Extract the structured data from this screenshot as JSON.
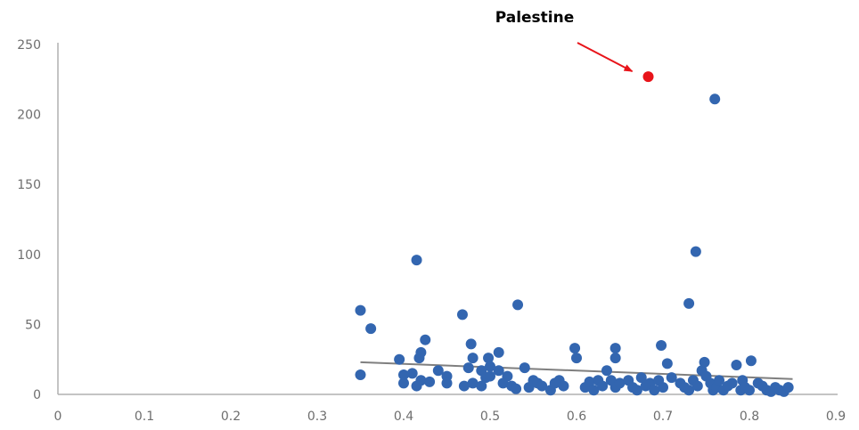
{
  "chart_data": {
    "type": "scatter",
    "title": "",
    "xlabel": "",
    "ylabel": "",
    "xlim": [
      0,
      0.9
    ],
    "ylim": [
      0,
      250
    ],
    "x_ticks": [
      0,
      0.1,
      0.2,
      0.3,
      0.4,
      0.5,
      0.6,
      0.7,
      0.8,
      0.9
    ],
    "x_tick_labels": [
      "0",
      "0.1",
      "0.2",
      "0.3",
      "0.4",
      "0.5",
      "0.6",
      "0.7",
      "0.8",
      "0.9"
    ],
    "y_ticks": [
      0,
      50,
      100,
      150,
      200,
      250
    ],
    "y_tick_labels": [
      "0",
      "50",
      "100",
      "150",
      "200",
      "250"
    ],
    "grid": false,
    "legend": "none",
    "colors": {
      "points": "#3366b0",
      "highlight": "#e8141a",
      "trendline": "#7f7f7f",
      "axis": "#b0b0b0"
    },
    "series": [
      {
        "points": [
          [
            0.35,
            60
          ],
          [
            0.362,
            47
          ],
          [
            0.35,
            14
          ],
          [
            0.395,
            25
          ],
          [
            0.4,
            14
          ],
          [
            0.4,
            8
          ],
          [
            0.41,
            15
          ],
          [
            0.415,
            96
          ],
          [
            0.418,
            26
          ],
          [
            0.42,
            30
          ],
          [
            0.42,
            10
          ],
          [
            0.415,
            6
          ],
          [
            0.425,
            39
          ],
          [
            0.43,
            9
          ],
          [
            0.44,
            17
          ],
          [
            0.45,
            13
          ],
          [
            0.45,
            8
          ],
          [
            0.468,
            57
          ],
          [
            0.47,
            6
          ],
          [
            0.475,
            19
          ],
          [
            0.478,
            36
          ],
          [
            0.48,
            26
          ],
          [
            0.48,
            8
          ],
          [
            0.49,
            6
          ],
          [
            0.49,
            17
          ],
          [
            0.495,
            12
          ],
          [
            0.498,
            26
          ],
          [
            0.5,
            20
          ],
          [
            0.5,
            13
          ],
          [
            0.51,
            30
          ],
          [
            0.51,
            17
          ],
          [
            0.515,
            8
          ],
          [
            0.52,
            13
          ],
          [
            0.525,
            6
          ],
          [
            0.53,
            4
          ],
          [
            0.532,
            64
          ],
          [
            0.54,
            19
          ],
          [
            0.545,
            5
          ],
          [
            0.55,
            10
          ],
          [
            0.555,
            8
          ],
          [
            0.56,
            6
          ],
          [
            0.57,
            3
          ],
          [
            0.575,
            8
          ],
          [
            0.58,
            10
          ],
          [
            0.585,
            6
          ],
          [
            0.598,
            33
          ],
          [
            0.6,
            26
          ],
          [
            0.61,
            5
          ],
          [
            0.615,
            9
          ],
          [
            0.62,
            3
          ],
          [
            0.625,
            10
          ],
          [
            0.63,
            6
          ],
          [
            0.635,
            17
          ],
          [
            0.64,
            10
          ],
          [
            0.645,
            33
          ],
          [
            0.645,
            26
          ],
          [
            0.645,
            5
          ],
          [
            0.65,
            8
          ],
          [
            0.66,
            10
          ],
          [
            0.665,
            5
          ],
          [
            0.67,
            3
          ],
          [
            0.675,
            12
          ],
          [
            0.68,
            6
          ],
          [
            0.685,
            8
          ],
          [
            0.69,
            3
          ],
          [
            0.695,
            10
          ],
          [
            0.698,
            35
          ],
          [
            0.7,
            5
          ],
          [
            0.705,
            22
          ],
          [
            0.71,
            12
          ],
          [
            0.72,
            8
          ],
          [
            0.725,
            5
          ],
          [
            0.73,
            65
          ],
          [
            0.73,
            3
          ],
          [
            0.735,
            10
          ],
          [
            0.738,
            102
          ],
          [
            0.74,
            6
          ],
          [
            0.745,
            17
          ],
          [
            0.748,
            23
          ],
          [
            0.75,
            13
          ],
          [
            0.755,
            8
          ],
          [
            0.758,
            3
          ],
          [
            0.76,
            211
          ],
          [
            0.762,
            5
          ],
          [
            0.765,
            10
          ],
          [
            0.77,
            3
          ],
          [
            0.775,
            6
          ],
          [
            0.78,
            8
          ],
          [
            0.785,
            21
          ],
          [
            0.79,
            3
          ],
          [
            0.792,
            10
          ],
          [
            0.795,
            5
          ],
          [
            0.8,
            3
          ],
          [
            0.802,
            24
          ],
          [
            0.81,
            8
          ],
          [
            0.815,
            6
          ],
          [
            0.82,
            3
          ],
          [
            0.825,
            2
          ],
          [
            0.83,
            5
          ],
          [
            0.835,
            3
          ],
          [
            0.84,
            2
          ],
          [
            0.845,
            5
          ]
        ]
      },
      {
        "points": [
          [
            0.683,
            227
          ]
        ]
      }
    ],
    "trendline": {
      "x": [
        0.35,
        0.85
      ],
      "y": [
        23,
        11
      ]
    },
    "annotations": [
      {
        "text": "Palestine",
        "target": [
          0.683,
          227
        ],
        "color": "#e8141a"
      }
    ]
  }
}
